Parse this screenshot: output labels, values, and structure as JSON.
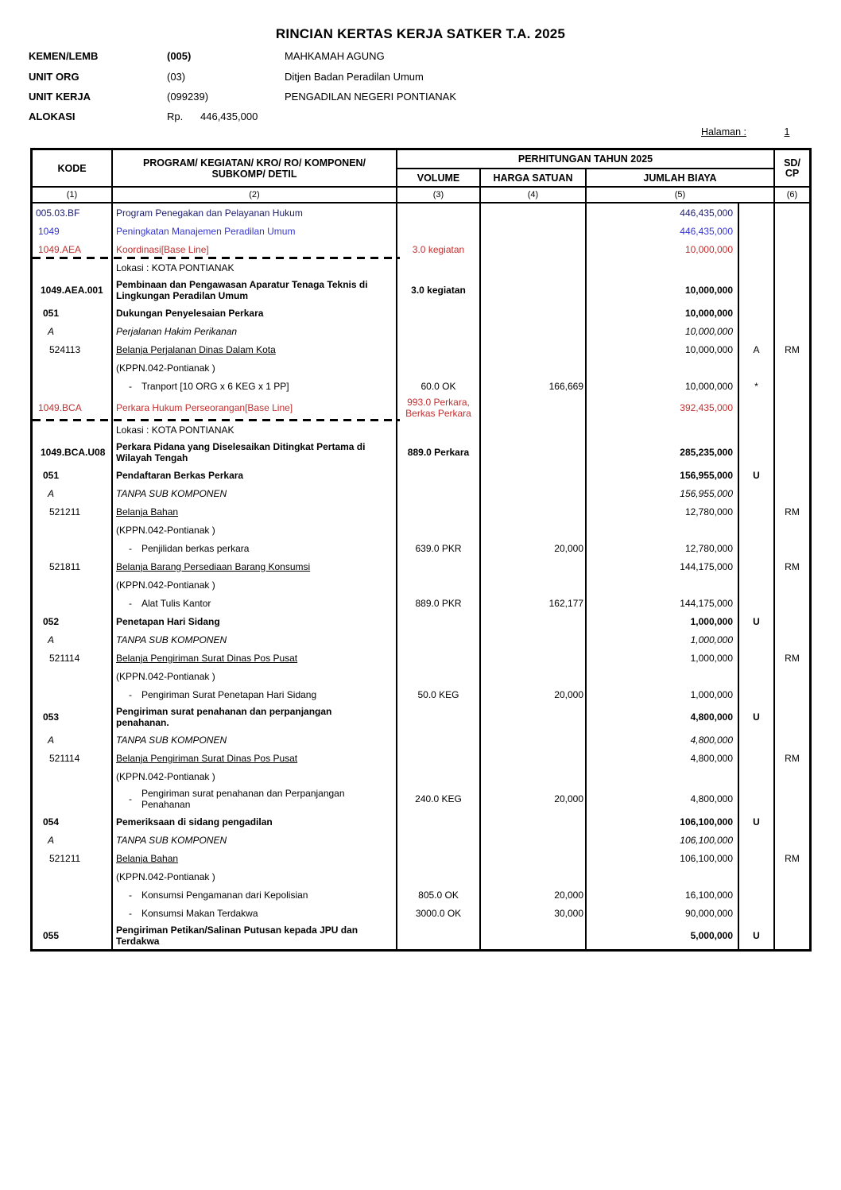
{
  "doc": {
    "title": "RINCIAN KERTAS KERJA SATKER T.A. 2025",
    "halaman_label": "Halaman :",
    "halaman_value": "1"
  },
  "colors": {
    "navy": "#1c1c6e",
    "blue": "#3636d2",
    "red": "#c22f2f"
  },
  "info": {
    "rows": [
      {
        "label": "KEMEN/LEMB",
        "code": "(005)",
        "value": "MAHKAMAH AGUNG"
      },
      {
        "label": "UNIT ORG",
        "code": "(03)",
        "value": "Ditjen Badan Peradilan Umum"
      },
      {
        "label": "UNIT KERJA",
        "code": "(099239)",
        "value": "PENGADILAN NEGERI PONTIANAK"
      },
      {
        "label": "ALOKASI",
        "code": "Rp.",
        "value": "446,435,000"
      }
    ]
  },
  "table": {
    "headers": {
      "kode": "KODE",
      "program": "PROGRAM/ KEGIATAN/ KRO/ RO/ KOMPONEN/\nSUBKOMP/ DETIL",
      "perhitungan": "PERHITUNGAN TAHUN 2025",
      "volume": "VOLUME",
      "harga": "HARGA SATUAN",
      "jumlah": "JUMLAH BIAYA",
      "sdcp": "SD/\nCP"
    },
    "numbering": [
      "(1)",
      "(2)",
      "(3)",
      "(4)",
      "(5)",
      "(6)"
    ],
    "detail_bullet": "-",
    "rows": [
      {
        "kode": "005.03.BF",
        "style": "navy",
        "indent": 1,
        "desc": "Program Penegakan dan Pelayanan Hukum",
        "jumlah": "446,435,000"
      },
      {
        "kode": "1049",
        "style": "blue",
        "indent": 2,
        "desc": "Peningkatan Manajemen Peradilan Umum",
        "jumlah": "446,435,000"
      },
      {
        "kode": "1049.AEA",
        "style": "red",
        "indent": 2,
        "desc": "Koordinasi[Base Line]",
        "volume": "3.0 kegiatan",
        "jumlah": "10,000,000"
      },
      {
        "style": "plain",
        "desc": "Lokasi : KOTA PONTIANAK",
        "dash": true
      },
      {
        "kode": "1049.AEA.001",
        "style": "bold",
        "indent": 3,
        "desc": "Pembinaan dan Pengawasan Aparatur Tenaga Teknis di\nLingkungan Peradilan Umum",
        "volume": "3.0 kegiatan",
        "jumlah": "10,000,000"
      },
      {
        "kode": "051",
        "style": "bold",
        "indent": 4,
        "desc": "Dukungan Penyelesaian Perkara",
        "jumlah": "10,000,000"
      },
      {
        "kode": "A",
        "style": "italic",
        "indent": 5,
        "desc": "Perjalanan Hakim Perikanan",
        "jumlah": "10,000,000"
      },
      {
        "kode": "524113",
        "style": "akun",
        "indent": 6,
        "desc": "Belanja Perjalanan Dinas Dalam Kota",
        "jumlah": "10,000,000",
        "marker": "A",
        "sdcp": "RM"
      },
      {
        "style": "plain",
        "desc": "(KPPN.042-Pontianak )"
      },
      {
        "style": "detail",
        "desc": "Tranport [10 ORG x 6 KEG x 1 PP]",
        "volume": "60.0 OK",
        "harga": "166,669",
        "jumlah": "10,000,000",
        "marker": "*"
      },
      {
        "kode": "1049.BCA",
        "style": "red",
        "indent": 2,
        "desc": "Perkara Hukum Perseorangan[Base Line]",
        "volume": "993.0 Perkara,\nBerkas Perkara",
        "jumlah": "392,435,000"
      },
      {
        "style": "plain",
        "desc": "Lokasi : KOTA PONTIANAK",
        "dash": true
      },
      {
        "kode": "1049.BCA.U08",
        "style": "bold",
        "indent": 3,
        "desc": "Perkara Pidana yang Diselesaikan Ditingkat Pertama di\nWilayah Tengah",
        "volume": "889.0 Perkara",
        "jumlah": "285,235,000"
      },
      {
        "kode": "051",
        "style": "bold",
        "indent": 4,
        "desc": "Pendaftaran Berkas Perkara",
        "jumlah": "156,955,000",
        "marker": "U"
      },
      {
        "kode": "A",
        "style": "italic",
        "indent": 5,
        "desc": "TANPA SUB KOMPONEN",
        "jumlah": "156,955,000"
      },
      {
        "kode": "521211",
        "style": "akun",
        "indent": 6,
        "desc": "Belanja Bahan",
        "jumlah": "12,780,000",
        "sdcp": "RM"
      },
      {
        "style": "plain",
        "desc": "(KPPN.042-Pontianak )"
      },
      {
        "style": "detail",
        "desc": "Penjilidan berkas perkara",
        "volume": "639.0 PKR",
        "harga": "20,000",
        "jumlah": "12,780,000"
      },
      {
        "kode": "521811",
        "style": "akun",
        "indent": 6,
        "desc": "Belanja Barang Persediaan Barang Konsumsi",
        "jumlah": "144,175,000",
        "sdcp": "RM"
      },
      {
        "style": "plain",
        "desc": "(KPPN.042-Pontianak )"
      },
      {
        "style": "detail",
        "desc": "Alat Tulis Kantor",
        "volume": "889.0 PKR",
        "harga": "162,177",
        "jumlah": "144,175,000"
      },
      {
        "kode": "052",
        "style": "bold",
        "indent": 4,
        "desc": "Penetapan Hari Sidang",
        "jumlah": "1,000,000",
        "marker": "U"
      },
      {
        "kode": "A",
        "style": "italic",
        "indent": 5,
        "desc": "TANPA SUB KOMPONEN",
        "jumlah": "1,000,000"
      },
      {
        "kode": "521114",
        "style": "akun",
        "indent": 6,
        "desc": "Belanja Pengiriman Surat Dinas Pos Pusat",
        "jumlah": "1,000,000",
        "sdcp": "RM"
      },
      {
        "style": "plain",
        "desc": "(KPPN.042-Pontianak )"
      },
      {
        "style": "detail",
        "desc": "Pengiriman Surat Penetapan Hari Sidang",
        "volume": "50.0 KEG",
        "harga": "20,000",
        "jumlah": "1,000,000"
      },
      {
        "kode": "053",
        "style": "bold",
        "indent": 4,
        "desc": "Pengiriman surat penahanan dan perpanjangan\npenahanan.",
        "jumlah": "4,800,000",
        "marker": "U"
      },
      {
        "kode": "A",
        "style": "italic",
        "indent": 5,
        "desc": "TANPA SUB KOMPONEN",
        "jumlah": "4,800,000"
      },
      {
        "kode": "521114",
        "style": "akun",
        "indent": 6,
        "desc": "Belanja Pengiriman Surat Dinas Pos Pusat",
        "jumlah": "4,800,000",
        "sdcp": "RM"
      },
      {
        "style": "plain",
        "desc": "(KPPN.042-Pontianak )"
      },
      {
        "style": "detail",
        "desc": "Pengiriman surat penahanan dan Perpanjangan\nPenahanan",
        "volume": "240.0 KEG",
        "harga": "20,000",
        "jumlah": "4,800,000"
      },
      {
        "kode": "054",
        "style": "bold",
        "indent": 4,
        "desc": "Pemeriksaan di sidang pengadilan",
        "jumlah": "106,100,000",
        "marker": "U"
      },
      {
        "kode": "A",
        "style": "italic",
        "indent": 5,
        "desc": "TANPA SUB KOMPONEN",
        "jumlah": "106,100,000"
      },
      {
        "kode": "521211",
        "style": "akun",
        "indent": 6,
        "desc": "Belanja Bahan",
        "jumlah": "106,100,000",
        "sdcp": "RM"
      },
      {
        "style": "plain",
        "desc": "(KPPN.042-Pontianak )"
      },
      {
        "style": "detail",
        "desc": "Konsumsi Pengamanan dari Kepolisian",
        "volume": "805.0 OK",
        "harga": "20,000",
        "jumlah": "16,100,000"
      },
      {
        "style": "detail",
        "desc": "Konsumsi Makan Terdakwa",
        "volume": "3000.0 OK",
        "harga": "30,000",
        "jumlah": "90,000,000"
      },
      {
        "kode": "055",
        "style": "bold",
        "indent": 4,
        "desc": "Pengiriman Petikan/Salinan Putusan kepada JPU dan\nTerdakwa",
        "jumlah": "5,000,000",
        "marker": "U"
      }
    ]
  }
}
